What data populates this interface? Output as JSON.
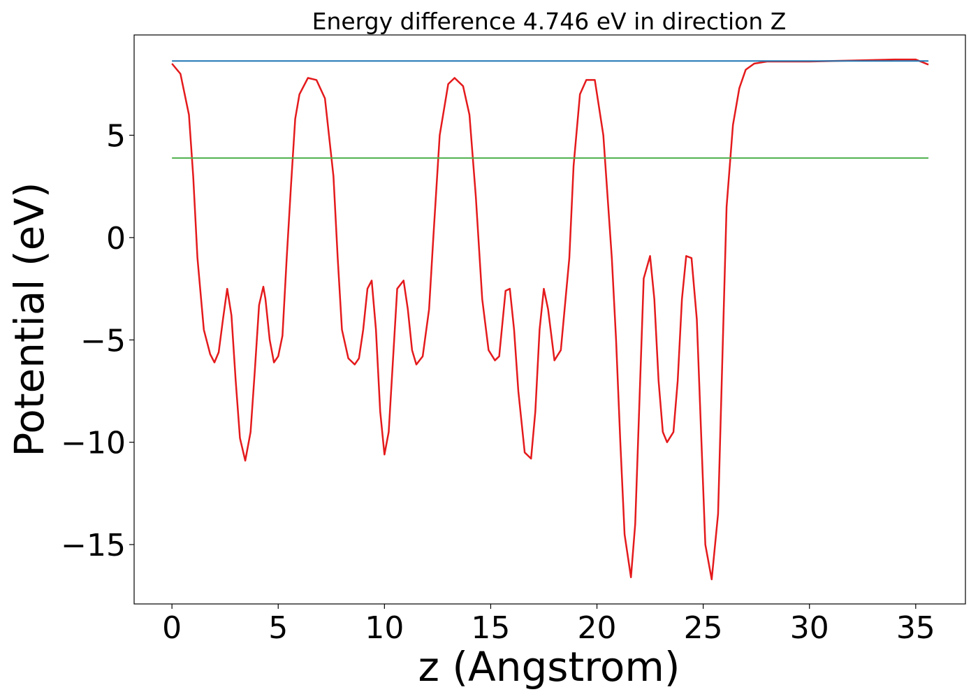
{
  "chart_data": {
    "type": "line",
    "title": "Energy difference 4.746 eV in direction Z",
    "xlabel": "z (Angstrom)",
    "ylabel": "Potential (eV)",
    "xlim": [
      -1.78,
      37.34
    ],
    "ylim": [
      -17.9,
      9.9
    ],
    "xticks": [
      0,
      5,
      10,
      15,
      20,
      25,
      30,
      35
    ],
    "yticks": [
      5,
      0,
      -5,
      -10,
      -15
    ],
    "ytick_labels": [
      "5",
      "0",
      "−5",
      "−10",
      "−15"
    ],
    "grid": false,
    "legend": "none",
    "series": [
      {
        "color": "#e41a1c",
        "x": [
          0,
          0.4,
          0.8,
          1.0,
          1.2,
          1.5,
          1.8,
          2.0,
          2.2,
          2.4,
          2.6,
          2.8,
          3.0,
          3.2,
          3.45,
          3.7,
          3.9,
          4.1,
          4.3,
          4.4,
          4.6,
          4.8,
          5.0,
          5.2,
          5.4,
          5.6,
          5.8,
          6.0,
          6.4,
          6.8,
          7.2,
          7.6,
          7.8,
          8.0,
          8.3,
          8.6,
          8.8,
          9.0,
          9.2,
          9.4,
          9.6,
          9.8,
          10.0,
          10.2,
          10.4,
          10.6,
          10.9,
          11.1,
          11.3,
          11.5,
          11.8,
          12.1,
          12.3,
          12.6,
          13.0,
          13.3,
          13.7,
          14.0,
          14.3,
          14.6,
          14.9,
          15.2,
          15.4,
          15.7,
          15.9,
          16.1,
          16.3,
          16.6,
          16.9,
          17.1,
          17.3,
          17.5,
          17.7,
          18.0,
          18.3,
          18.7,
          18.9,
          19.2,
          19.5,
          19.9,
          20.3,
          20.7,
          20.9,
          21.1,
          21.3,
          21.6,
          21.8,
          22.0,
          22.2,
          22.5,
          22.7,
          22.9,
          23.1,
          23.3,
          23.6,
          23.8,
          24.0,
          24.2,
          24.45,
          24.7,
          24.9,
          25.1,
          25.4,
          25.7,
          25.9,
          26.1,
          26.4,
          26.7,
          27.0,
          27.4,
          28.0,
          29.0,
          30.0,
          32.0,
          34.0,
          35.0,
          35.6
        ],
        "y": [
          8.5,
          8.0,
          6.0,
          3.0,
          -1.0,
          -4.5,
          -5.7,
          -6.1,
          -5.6,
          -4.0,
          -2.5,
          -3.8,
          -7.0,
          -9.8,
          -10.9,
          -9.5,
          -6.5,
          -3.3,
          -2.4,
          -3.0,
          -5.0,
          -6.1,
          -5.8,
          -4.8,
          -1.0,
          2.5,
          5.8,
          7.0,
          7.8,
          7.7,
          6.8,
          3.0,
          -1.0,
          -4.5,
          -5.9,
          -6.2,
          -5.9,
          -4.5,
          -2.5,
          -2.1,
          -4.5,
          -8.5,
          -10.6,
          -9.5,
          -6.0,
          -2.5,
          -2.1,
          -3.5,
          -5.5,
          -6.2,
          -5.8,
          -3.5,
          0.0,
          5.0,
          7.5,
          7.8,
          7.4,
          6.0,
          2.0,
          -3.0,
          -5.5,
          -6.0,
          -5.8,
          -2.6,
          -2.5,
          -4.5,
          -7.5,
          -10.5,
          -10.8,
          -8.5,
          -4.5,
          -2.5,
          -3.5,
          -6.0,
          -5.5,
          -1.0,
          3.5,
          7.0,
          7.7,
          7.7,
          5.0,
          -1.0,
          -5.0,
          -10.0,
          -14.5,
          -16.6,
          -14.0,
          -8.0,
          -2.0,
          -0.9,
          -3.0,
          -7.0,
          -9.5,
          -10.0,
          -9.5,
          -7.0,
          -3.0,
          -0.9,
          -1.0,
          -4.0,
          -9.5,
          -15.0,
          -16.7,
          -13.5,
          -6.0,
          1.5,
          5.5,
          7.3,
          8.2,
          8.5,
          8.6,
          8.6,
          8.6,
          8.65,
          8.7,
          8.7,
          8.45
        ]
      },
      {
        "color": "#1f77b4",
        "x": [
          0,
          35.6
        ],
        "y": [
          8.63,
          8.63
        ]
      },
      {
        "color": "#4daf4a",
        "x": [
          0,
          35.6
        ],
        "y": [
          3.884,
          3.884
        ]
      }
    ]
  }
}
